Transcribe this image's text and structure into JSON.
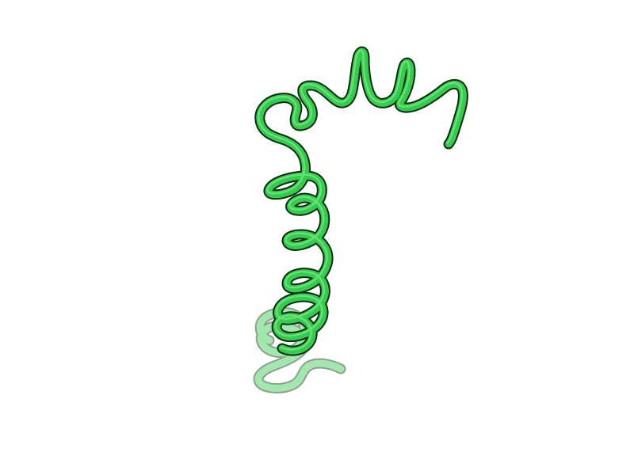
{
  "scene": {
    "background_color": "#ffffff",
    "ribbon_color": "#33cc4d",
    "ribbon_highlight_color": "#8ff09a",
    "outline_color": "#0a2a0f",
    "depth_fog_color": "#ffffff",
    "icon": "protein-helix-cartoon"
  }
}
